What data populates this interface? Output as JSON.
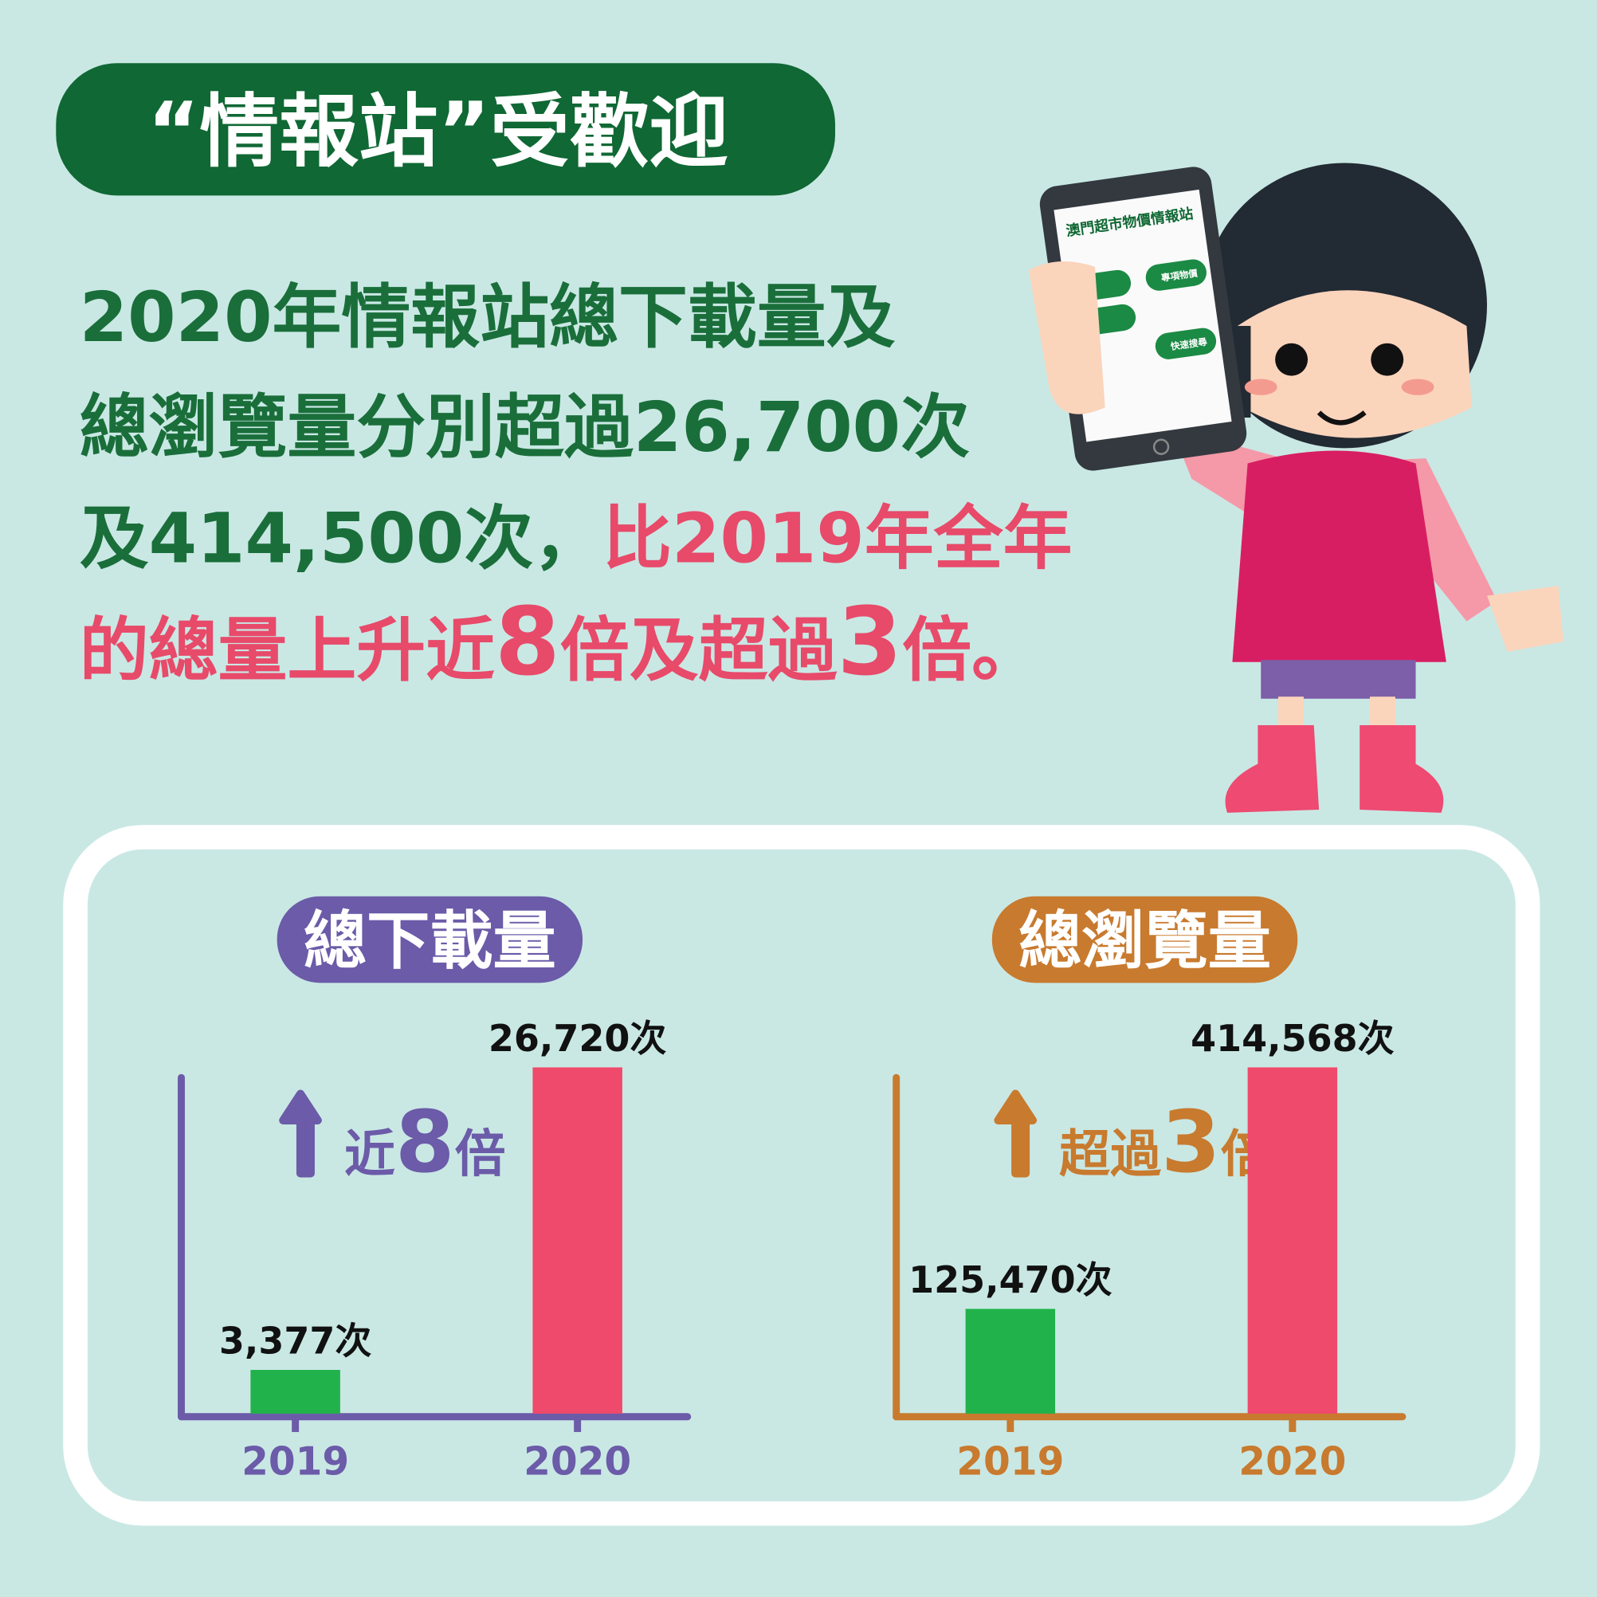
{
  "headline": "“情報站”受歡迎",
  "paragraph": [
    [
      {
        "text": "2020年情報站總下載量及",
        "color": "#1a6e3a"
      }
    ],
    [
      {
        "text": "總瀏覽量分別超過26,700次",
        "color": "#1a6e3a"
      }
    ],
    [
      {
        "text": "及414,500次，",
        "color": "#1a6e3a"
      },
      {
        "text": "比2019年全年",
        "color": "#e84a6a"
      }
    ],
    [
      {
        "text": "的總量上升近",
        "color": "#e84a6a"
      },
      {
        "text": "8",
        "color": "#e84a6a",
        "big": true
      },
      {
        "text": "倍及超過",
        "color": "#e84a6a"
      },
      {
        "text": "3",
        "color": "#e84a6a",
        "big": true
      },
      {
        "text": "倍。",
        "color": "#e84a6a"
      }
    ]
  ],
  "phone": {
    "title": "澳門超市物價情報站",
    "buttons": [
      "專項物價",
      "快速搜尋"
    ]
  },
  "chart_data": [
    {
      "type": "bar",
      "title": "總下載量",
      "color": "#6b5ba8",
      "categories": [
        "2019",
        "2020"
      ],
      "values": [
        3377,
        26720
      ],
      "value_labels": [
        "3,377次",
        "26,720次"
      ],
      "bar_colors": [
        "#22b24c",
        "#ef4a6b"
      ],
      "annotation": [
        "近",
        "8",
        "倍"
      ]
    },
    {
      "type": "bar",
      "title": "總瀏覽量",
      "color": "#c87a2e",
      "categories": [
        "2019",
        "2020"
      ],
      "values": [
        125470,
        414568
      ],
      "value_labels": [
        "125,470次",
        "414,568次"
      ],
      "bar_colors": [
        "#22b24c",
        "#ef4a6b"
      ],
      "annotation": [
        "超過",
        "3",
        "倍"
      ]
    }
  ]
}
